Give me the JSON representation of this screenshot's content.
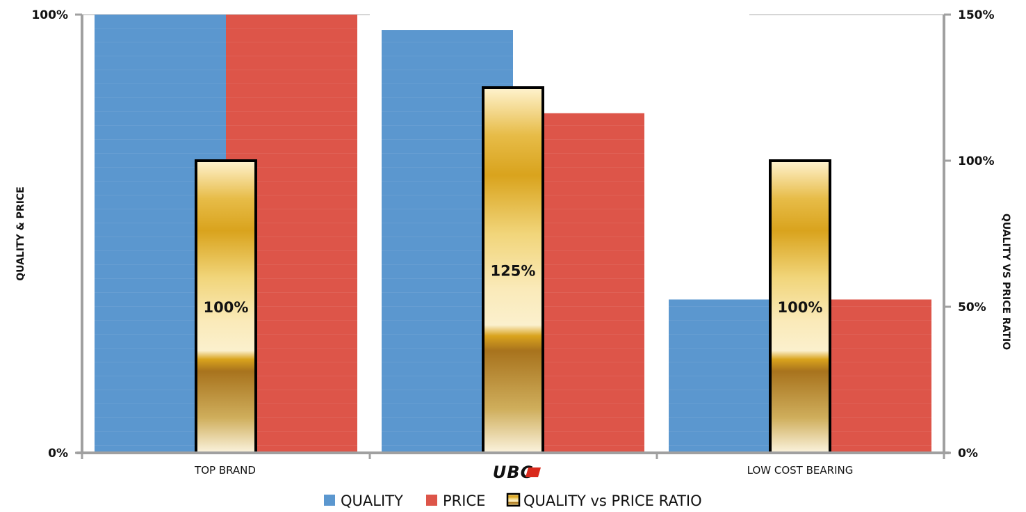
{
  "chart_data": {
    "type": "bar",
    "categories": [
      "TOP BRAND",
      "UBC",
      "LOW COST BEARING"
    ],
    "series": [
      {
        "name": "QUALITY",
        "axis": "left",
        "values": [
          100,
          96.5,
          35
        ]
      },
      {
        "name": "PRICE",
        "axis": "left",
        "values": [
          100,
          77.5,
          35
        ]
      },
      {
        "name": "QUALITY vs PRICE RATIO",
        "axis": "right",
        "values": [
          100,
          125,
          100
        ],
        "data_labels": [
          "100%",
          "125%",
          "100%"
        ]
      }
    ],
    "ylabel": "QUALITY & PRICE",
    "ylabel_right": "QUALITY VS PRICE RATIO",
    "ylim": [
      0,
      100
    ],
    "ylim_right": [
      0,
      150
    ],
    "yticks": [
      "0%",
      "100%"
    ],
    "yticks_right": [
      "0%",
      "50%",
      "100%",
      "150%"
    ],
    "legend_position": "bottom",
    "grid": false,
    "colors": {
      "quality": "#5b97cf",
      "price": "#dd5549",
      "ratio": "#e2b23c"
    }
  }
}
